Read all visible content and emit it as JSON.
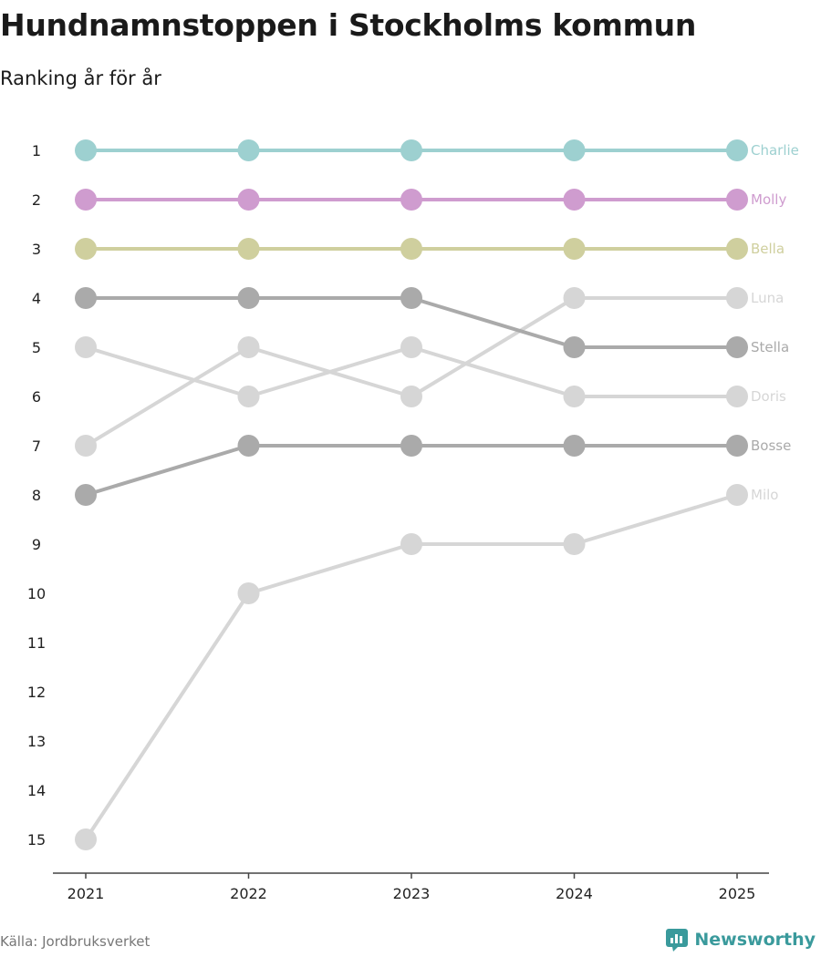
{
  "header": {
    "title": "Hundnamnstoppen i Stockholms kommun",
    "subtitle": "Ranking år för år"
  },
  "footer": {
    "source": "Källa: Jordbruksverket",
    "brand": "Newsworthy"
  },
  "chart_data": {
    "type": "line",
    "title": "Hundnamnstoppen i Stockholms kommun",
    "subtitle": "Ranking år för år",
    "xlabel": "",
    "ylabel": "",
    "x": [
      "2021",
      "2022",
      "2023",
      "2024",
      "2025"
    ],
    "ylim": [
      1,
      15
    ],
    "y_inverted": true,
    "y_ticks": [
      "1",
      "2",
      "3",
      "4",
      "5",
      "6",
      "7",
      "8",
      "9",
      "10",
      "11",
      "12",
      "13",
      "14",
      "15"
    ],
    "grid": false,
    "legend": "labels at line ends (right)",
    "series": [
      {
        "name": "Charlie",
        "color": "#9dd0d0",
        "values": [
          1,
          1,
          1,
          1,
          1
        ]
      },
      {
        "name": "Molly",
        "color": "#cf9ccf",
        "values": [
          2,
          2,
          2,
          2,
          2
        ]
      },
      {
        "name": "Bella",
        "color": "#cfcf9e",
        "values": [
          3,
          3,
          3,
          3,
          3
        ]
      },
      {
        "name": "Luna",
        "color": "#d6d6d6",
        "values": [
          7,
          5,
          6,
          4,
          4
        ]
      },
      {
        "name": "Stella",
        "color": "#aaaaaa",
        "values": [
          4,
          4,
          4,
          5,
          5
        ]
      },
      {
        "name": "Doris",
        "color": "#d6d6d6",
        "values": [
          5,
          6,
          5,
          6,
          6
        ]
      },
      {
        "name": "Bosse",
        "color": "#aaaaaa",
        "values": [
          8,
          7,
          7,
          7,
          7
        ]
      },
      {
        "name": "Milo",
        "color": "#d6d6d6",
        "values": [
          15,
          10,
          9,
          9,
          8
        ]
      }
    ]
  }
}
